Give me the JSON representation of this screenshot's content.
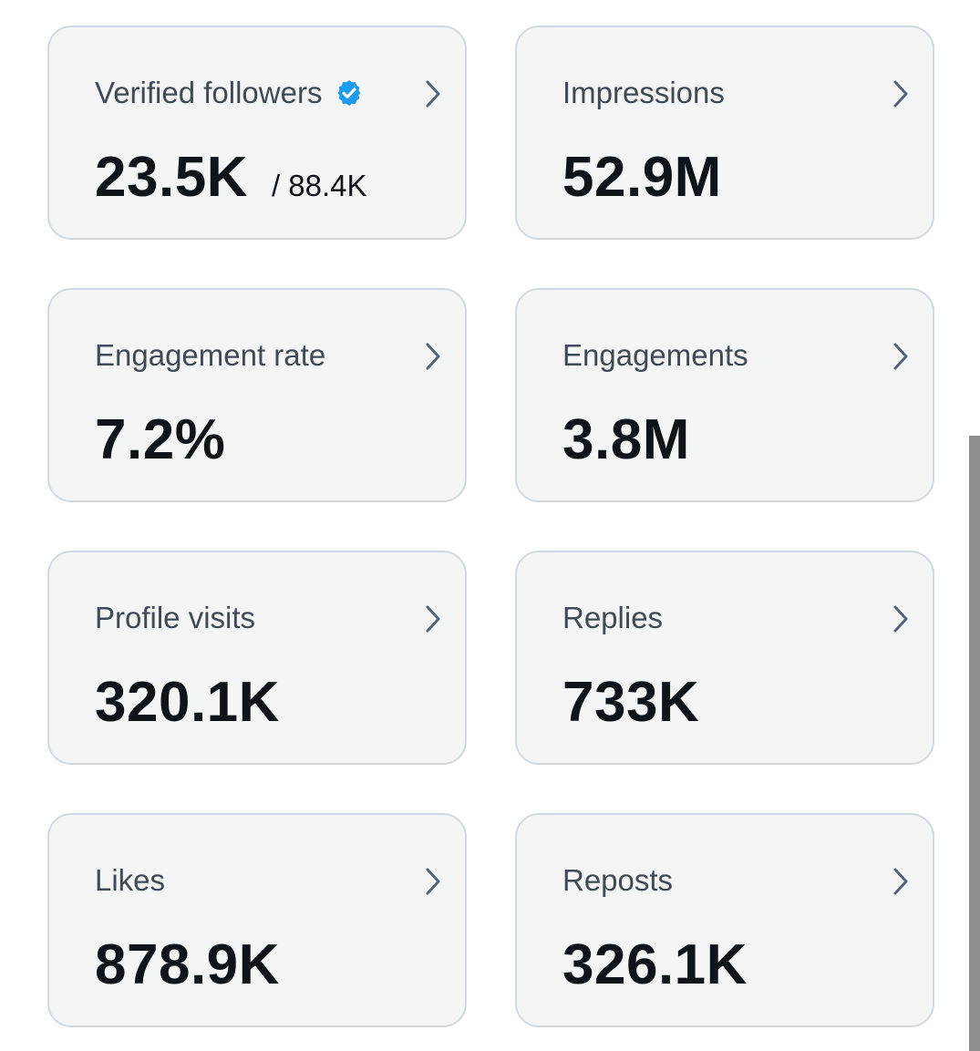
{
  "cards": [
    {
      "title": "Verified followers",
      "value": "23.5K",
      "sub": "/ 88.4K",
      "verified": true
    },
    {
      "title": "Impressions",
      "value": "52.9M"
    },
    {
      "title": "Engagement rate",
      "value": "7.2%"
    },
    {
      "title": "Engagements",
      "value": "3.8M"
    },
    {
      "title": "Profile visits",
      "value": "320.1K"
    },
    {
      "title": "Replies",
      "value": "733K"
    },
    {
      "title": "Likes",
      "value": "878.9K"
    },
    {
      "title": "Reposts",
      "value": "326.1K"
    }
  ],
  "icons": {
    "verified": "verified-badge-icon",
    "chevron": "chevron-right-icon"
  },
  "colors": {
    "verified_blue": "#1d9bf0",
    "card_background": "#f4f6f6",
    "card_border": "#cfd9de",
    "title_text": "#3f4a55",
    "value_text": "#0f1419",
    "chevron": "#536471"
  }
}
